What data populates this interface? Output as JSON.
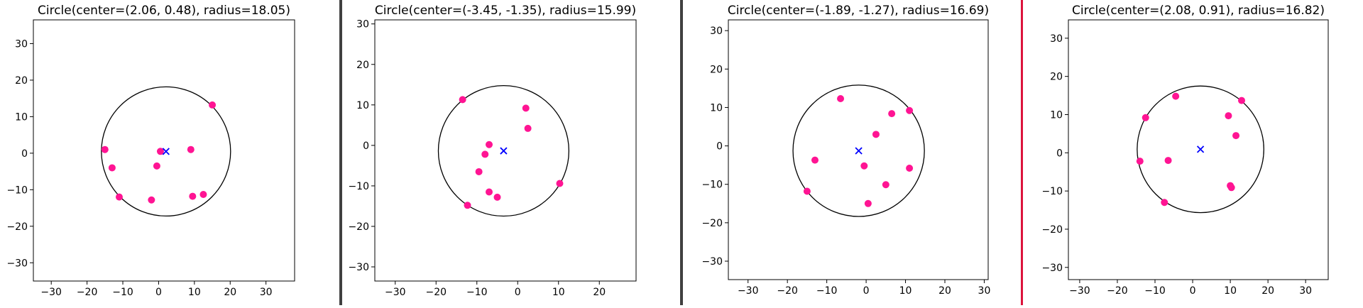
{
  "colors": {
    "point": "#FF1493",
    "center": "#0000FF",
    "circle": "#000000",
    "separator": "#404040",
    "separator_accent": "#DC143C"
  },
  "chart_data": [
    {
      "type": "scatter",
      "title": "Circle(center=(2.06, 0.48), radius=18.05)",
      "center": [
        2.06,
        0.48
      ],
      "radius": 18.05,
      "xlim": [
        -35,
        38
      ],
      "ylim": [
        -35,
        36.5
      ],
      "xticks": [
        -30,
        -20,
        -10,
        0,
        10,
        20,
        30
      ],
      "yticks": [
        -30,
        -20,
        -10,
        0,
        10,
        20,
        30
      ],
      "xlabel": "",
      "ylabel": "",
      "grid": false,
      "points": [
        [
          15,
          13.2
        ],
        [
          -15,
          1
        ],
        [
          -13,
          -4
        ],
        [
          -11,
          -12
        ],
        [
          0.5,
          0.5
        ],
        [
          -0.5,
          -3.5
        ],
        [
          -2,
          -12.8
        ],
        [
          9,
          1
        ],
        [
          9.5,
          -11.8
        ],
        [
          12.5,
          -11.3
        ]
      ]
    },
    {
      "type": "scatter",
      "title": "Circle(center=(-3.45, -1.35), radius=15.99)",
      "center": [
        -3.45,
        -1.35
      ],
      "radius": 15.99,
      "xlim": [
        -35,
        29
      ],
      "ylim": [
        -33.5,
        31
      ],
      "xticks": [
        -30,
        -20,
        -10,
        0,
        10,
        20
      ],
      "yticks": [
        -30,
        -20,
        -10,
        0,
        10,
        20,
        30
      ],
      "xlabel": "",
      "ylabel": "",
      "grid": false,
      "points": [
        [
          -13.5,
          11.3
        ],
        [
          2,
          9.2
        ],
        [
          2.5,
          4.2
        ],
        [
          -7,
          0.2
        ],
        [
          -8,
          -2.2
        ],
        [
          -9.5,
          -6.5
        ],
        [
          -7,
          -11.5
        ],
        [
          -5,
          -12.8
        ],
        [
          -12.3,
          -14.8
        ],
        [
          10.3,
          -9.4
        ]
      ]
    },
    {
      "type": "scatter",
      "title": "Circle(center=(-1.89, -1.27), radius=16.69)",
      "center": [
        -1.89,
        -1.27
      ],
      "radius": 16.69,
      "xlim": [
        -35,
        31
      ],
      "ylim": [
        -34.8,
        32.8
      ],
      "xticks": [
        -30,
        -20,
        -10,
        0,
        10,
        20,
        30
      ],
      "yticks": [
        -30,
        -20,
        -10,
        0,
        10,
        20,
        30
      ],
      "xlabel": "",
      "ylabel": "",
      "grid": false,
      "points": [
        [
          -6.5,
          12.3
        ],
        [
          11,
          9.2
        ],
        [
          6.5,
          8.4
        ],
        [
          2.5,
          3
        ],
        [
          -13,
          -3.7
        ],
        [
          -0.5,
          -5.2
        ],
        [
          11,
          -5.8
        ],
        [
          5,
          -10.1
        ],
        [
          0.5,
          -15
        ],
        [
          -15,
          -11.8
        ]
      ]
    },
    {
      "type": "scatter",
      "title": "Circle(center=(2.08, 0.91), radius=16.82)",
      "center": [
        2.08,
        0.91
      ],
      "radius": 16.82,
      "xlim": [
        -33,
        36
      ],
      "ylim": [
        -33.2,
        34.8
      ],
      "xticks": [
        -30,
        -20,
        -10,
        0,
        10,
        20,
        30
      ],
      "yticks": [
        -30,
        -20,
        -10,
        0,
        10,
        20,
        30
      ],
      "xlabel": "",
      "ylabel": "",
      "grid": false,
      "points": [
        [
          -4.5,
          14.8
        ],
        [
          13,
          13.7
        ],
        [
          -12.5,
          9.2
        ],
        [
          9.5,
          9.7
        ],
        [
          11.5,
          4.5
        ],
        [
          -6.5,
          -2
        ],
        [
          -14,
          -2.2
        ],
        [
          10,
          -8.6
        ],
        [
          10.3,
          -9.1
        ],
        [
          -7.5,
          -13
        ]
      ]
    }
  ]
}
